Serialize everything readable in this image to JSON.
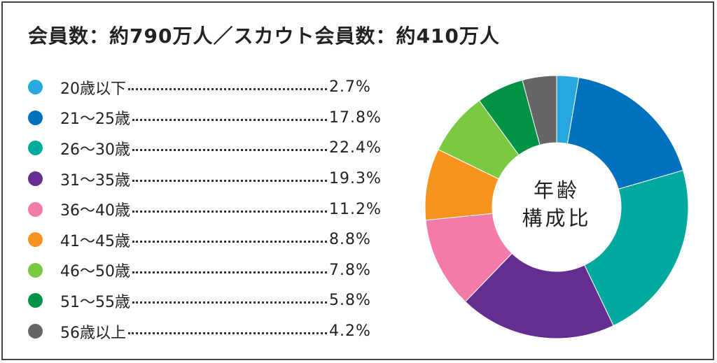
{
  "chart_data": {
    "type": "pie",
    "variant": "donut",
    "title": "会員数：約790万人／スカウト会員数：約410万人",
    "center_label": [
      "年齢",
      "構成比"
    ],
    "legend_placement": "left",
    "categories": [
      "20歳以下",
      "21～25歳",
      "26～30歳",
      "31～35歳",
      "36～40歳",
      "41～45歳",
      "46～50歳",
      "51～55歳",
      "56歳以上"
    ],
    "values": [
      2.7,
      17.8,
      22.4,
      19.3,
      11.2,
      8.8,
      7.8,
      5.8,
      4.2
    ],
    "value_labels": [
      "2.7%",
      "17.8%",
      "22.4%",
      "19.3%",
      "11.2%",
      "8.8%",
      "7.8%",
      "5.8%",
      "4.2%"
    ],
    "colors": [
      "#29a8e0",
      "#0071bd",
      "#00a99d",
      "#662d91",
      "#f47aaa",
      "#f7931e",
      "#7ac943",
      "#009245",
      "#666666"
    ],
    "start_angle": "top",
    "direction": "clockwise"
  }
}
